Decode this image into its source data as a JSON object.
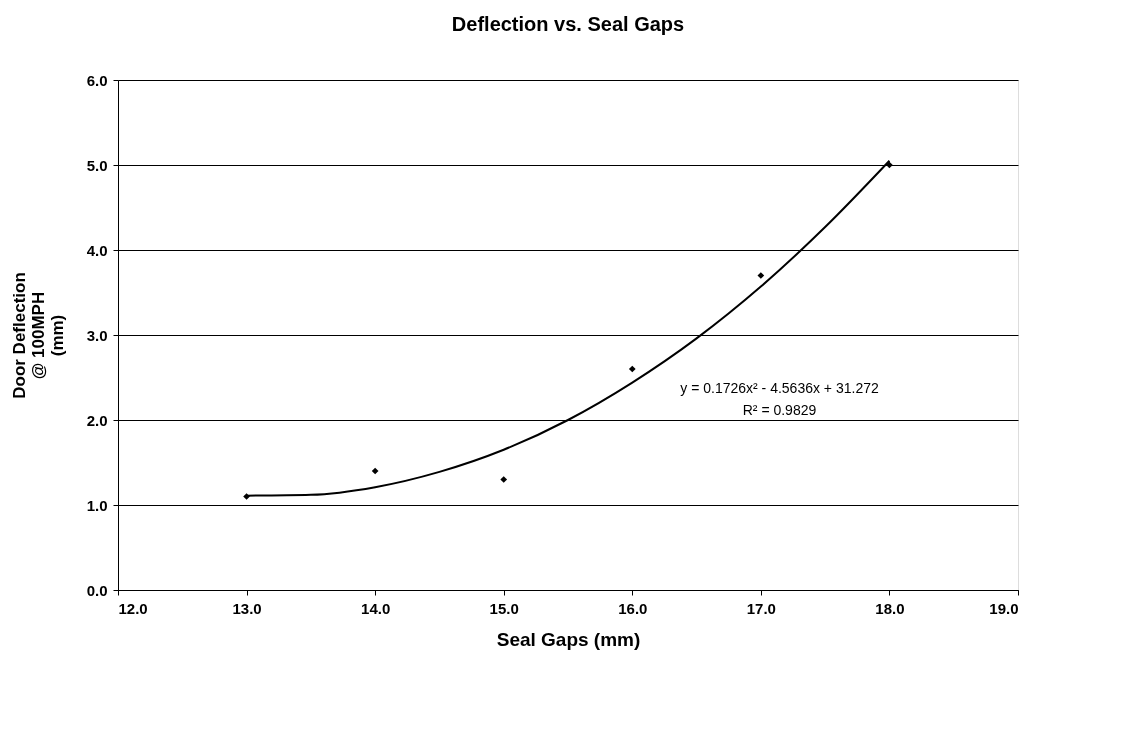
{
  "chart_data": {
    "type": "scatter",
    "title": "Deflection vs. Seal Gaps",
    "xlabel": "Seal Gaps  (mm)",
    "ylabel": "Door Deflection\n@ 100MPH\n(mm)",
    "series": [
      {
        "color": "#000000",
        "marker": "diamond",
        "x": [
          13,
          14,
          15,
          16,
          17,
          18
        ],
        "values": [
          1.1,
          1.4,
          1.3,
          2.6,
          3.7,
          5.0
        ]
      },
      {
        "type": "line",
        "color": "#000000",
        "marker": "none",
        "line_style": "solid",
        "x": [
          13,
          13.5,
          14,
          14.5,
          15,
          15.5,
          16,
          16.5,
          17,
          17.5,
          18
        ],
        "values": [
          1.11,
          1.12,
          1.21,
          1.39,
          1.65,
          2.0,
          2.44,
          2.96,
          3.57,
          4.27,
          5.05
        ]
      }
    ],
    "xlim": [
      12,
      19
    ],
    "ylim": [
      0,
      6
    ],
    "xticks": [
      {
        "value": 12,
        "label": "12.0"
      },
      {
        "value": 13,
        "label": "13.0"
      },
      {
        "value": 14,
        "label": "14.0"
      },
      {
        "value": 15,
        "label": "15.0"
      },
      {
        "value": 16,
        "label": "16.0"
      },
      {
        "value": 17,
        "label": "17.0"
      },
      {
        "value": 18,
        "label": "18.0"
      },
      {
        "value": 19,
        "label": "19.0"
      }
    ],
    "yticks": [
      {
        "value": 0,
        "label": "0.0"
      },
      {
        "value": 1,
        "label": "1.0"
      },
      {
        "value": 2,
        "label": "2.0"
      },
      {
        "value": 3,
        "label": "3.0"
      },
      {
        "value": 4,
        "label": "4.0"
      },
      {
        "value": 5,
        "label": "5.0"
      },
      {
        "value": 6,
        "label": "6.0"
      }
    ],
    "grid": "y",
    "annotations": [
      "y = 0.1726x² - 4.5636x + 31.272",
      "R² = 0.9829"
    ]
  }
}
